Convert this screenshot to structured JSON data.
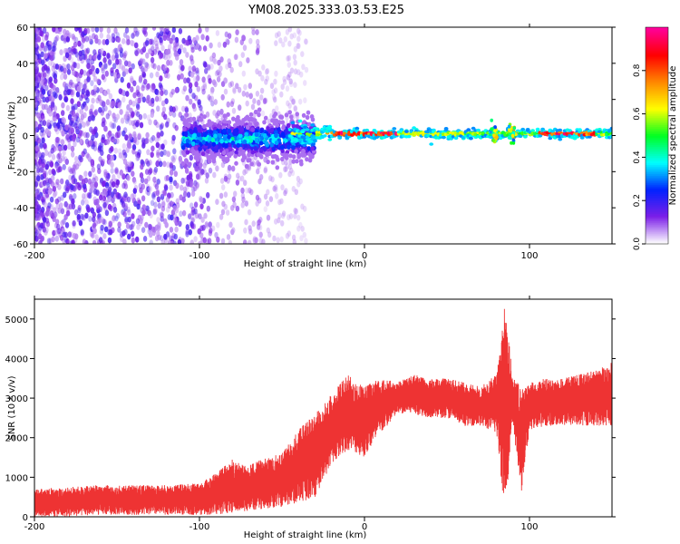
{
  "chart_data": [
    {
      "type": "heatmap",
      "title": "YM08.2025.333.03.53.E25",
      "xlabel": "Height of straight line (km)",
      "ylabel": "Frequency (Hz)",
      "xlim": [
        -200,
        150
      ],
      "ylim": [
        -60,
        60
      ],
      "xticks": [
        -200,
        -100,
        0,
        100
      ],
      "yticks": [
        -60,
        -40,
        -20,
        0,
        20,
        40,
        60
      ],
      "colorbar": {
        "label": "Normalized spectral amplitude",
        "range": [
          0.0,
          1.0
        ],
        "ticks": [
          "0.0",
          "0.2",
          "0.4",
          "0.6",
          "0.8"
        ],
        "colors": [
          "#ffffff",
          "#7b1fe8",
          "#0022ff",
          "#00ffff",
          "#00ff22",
          "#ffff00",
          "#ff8800",
          "#ff0000",
          "#ff0099"
        ]
      },
      "features": [
        {
          "name": "diffuse noise",
          "x_range": [
            -200,
            -35
          ],
          "freq_range": [
            -60,
            60
          ],
          "amplitude": 0.05
        },
        {
          "name": "broad band",
          "x_range": [
            -110,
            -30
          ],
          "center_freq": -2,
          "width_hz": 12,
          "amplitude": 0.3
        },
        {
          "name": "narrow line",
          "x_range": [
            -25,
            150
          ],
          "center_freq": 1,
          "width_hz": 3,
          "amplitude": 0.9
        }
      ]
    },
    {
      "type": "area",
      "xlabel": "Height of straight line (km)",
      "ylabel": "SNR (10 * v/v)",
      "xlim": [
        -200,
        150
      ],
      "ylim": [
        0,
        5500
      ],
      "xticks": [
        -200,
        -100,
        0,
        100
      ],
      "yticks": [
        0,
        1000,
        2000,
        3000,
        4000,
        5000
      ],
      "color": "#ee3333",
      "series": [
        {
          "name": "SNR",
          "x": [
            -200,
            -180,
            -160,
            -140,
            -120,
            -100,
            -90,
            -80,
            -70,
            -60,
            -50,
            -40,
            -30,
            -20,
            -10,
            0,
            10,
            20,
            30,
            40,
            50,
            60,
            70,
            80,
            85,
            90,
            95,
            100,
            110,
            120,
            130,
            140,
            150
          ],
          "low": [
            0,
            0,
            50,
            50,
            50,
            50,
            50,
            100,
            150,
            200,
            250,
            350,
            500,
            1300,
            1700,
            1500,
            2100,
            2600,
            2600,
            2500,
            2500,
            2300,
            2300,
            2100,
            100,
            2300,
            600,
            2200,
            2300,
            2300,
            2300,
            2300,
            2300
          ],
          "high": [
            700,
            750,
            800,
            800,
            800,
            850,
            1100,
            1450,
            1300,
            1500,
            1600,
            2200,
            2600,
            3100,
            3600,
            3300,
            3500,
            3400,
            3600,
            3500,
            3500,
            3400,
            3300,
            3600,
            5400,
            3500,
            3300,
            3400,
            3500,
            3500,
            3600,
            3700,
            3900
          ]
        }
      ]
    }
  ]
}
